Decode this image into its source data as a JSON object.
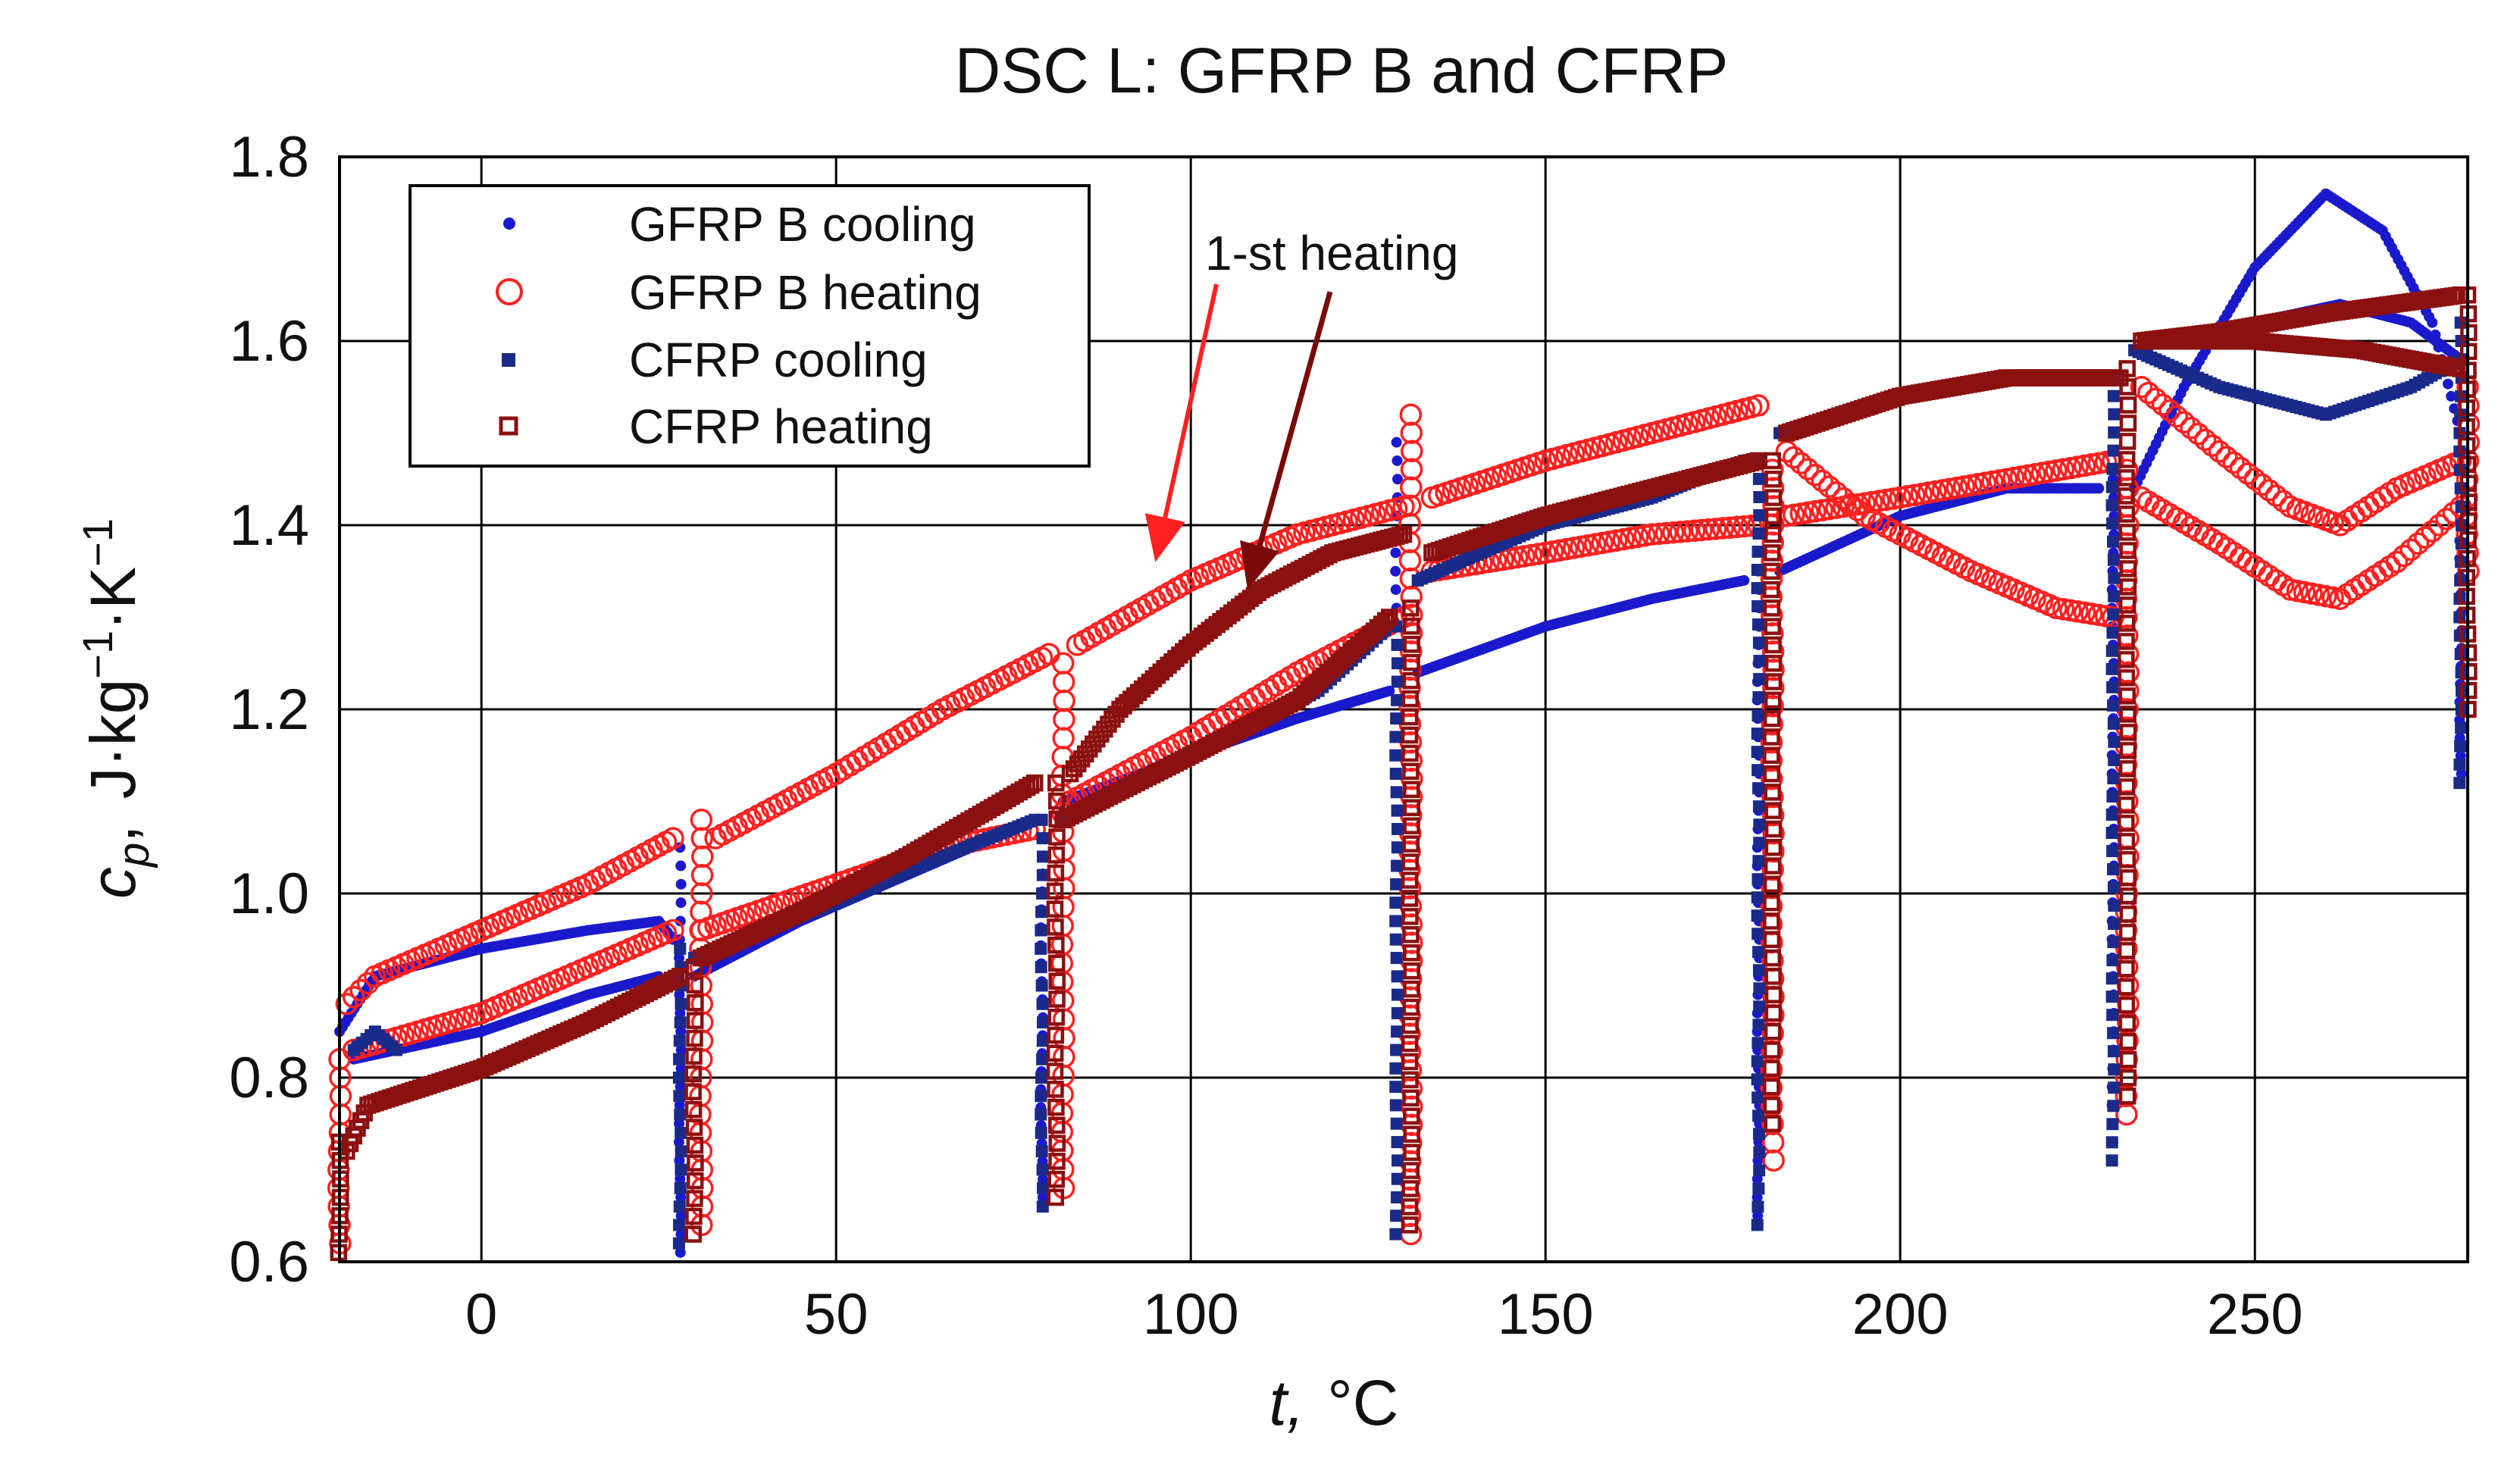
{
  "chart_data": {
    "type": "scatter",
    "title": "DSC L: GFRP B and CFRP",
    "xlabel_var": "t,",
    "xlabel_unit": "°C",
    "ylabel": "c_p, J·kg⁻¹·K⁻¹",
    "ylabel_var": "c",
    "ylabel_sub": "p",
    "ylabel_unit": "J·kg",
    "ylabel_sup1": "−1",
    "ylabel_mid": "·K",
    "ylabel_sup2": "−1",
    "xlim": [
      -20,
      280
    ],
    "ylim": [
      0.6,
      1.8
    ],
    "xticks": [
      0,
      50,
      100,
      150,
      200,
      250
    ],
    "xtick_labels": [
      "0",
      "50",
      "100",
      "150",
      "200",
      "250"
    ],
    "yticks": [
      0.6,
      0.8,
      1.0,
      1.2,
      1.4,
      1.6,
      1.8
    ],
    "ytick_labels": [
      "0.6",
      "0.8",
      "1.0",
      "1.2",
      "1.4",
      "1.6",
      "1.8"
    ],
    "grid": true,
    "legend_position": "top-left",
    "legend": [
      "GFRP B cooling",
      "GFRP B heating",
      "CFRP cooling",
      "CFRP heating"
    ],
    "annotations": [
      {
        "text": "1-st heating",
        "targets": [
          [
            95,
            1.36
          ],
          [
            108,
            1.33
          ]
        ]
      }
    ],
    "colors": {
      "gfrp_cooling": "#1a1acc",
      "gfrp_heating": "#ff2020",
      "cfrp_cooling": "#1a2a8a",
      "cfrp_heating": "#8b1010",
      "arrow_red": "#ff2020",
      "arrow_dark": "#7a0a0a"
    },
    "series": [
      {
        "name": "GFRP B cooling",
        "marker": "dot",
        "segments": [
          [
            [
              -20,
              0.85
            ],
            [
              -15,
              0.91
            ],
            [
              0,
              0.94
            ],
            [
              15,
              0.96
            ],
            [
              25,
              0.97
            ],
            [
              27,
              0.95
            ]
          ],
          [
            [
              -18,
              0.82
            ],
            [
              0,
              0.85
            ],
            [
              15,
              0.89
            ],
            [
              25,
              0.91
            ]
          ],
          [
            [
              30,
              0.91
            ],
            [
              45,
              0.97
            ],
            [
              60,
              1.02
            ],
            [
              75,
              1.07
            ],
            [
              78,
              1.08
            ]
          ],
          [
            [
              82,
              1.1
            ],
            [
              100,
              1.15
            ],
            [
              115,
              1.19
            ],
            [
              128,
              1.22
            ]
          ],
          [
            [
              132,
              1.24
            ],
            [
              150,
              1.29
            ],
            [
              165,
              1.32
            ],
            [
              178,
              1.34
            ]
          ],
          [
            [
              183,
              1.35
            ],
            [
              200,
              1.41
            ],
            [
              215,
              1.44
            ],
            [
              228,
              1.44
            ]
          ],
          [
            [
              233,
              1.44
            ],
            [
              240,
              1.55
            ],
            [
              250,
              1.68
            ],
            [
              260,
              1.76
            ],
            [
              268,
              1.72
            ],
            [
              275,
              1.62
            ],
            [
              279,
              1.5
            ]
          ],
          [
            [
              235,
              1.6
            ],
            [
              250,
              1.62
            ],
            [
              262,
              1.64
            ],
            [
              272,
              1.62
            ],
            [
              279,
              1.58
            ]
          ]
        ],
        "drops": [
          [
            28,
            1.05,
            0.61
          ],
          [
            79,
            1.08,
            0.67
          ],
          [
            129,
            1.49,
            0.63
          ],
          [
            180,
            1.35,
            0.65
          ],
          [
            230,
            1.45,
            0.73
          ],
          [
            279,
            1.5,
            1.13
          ]
        ]
      },
      {
        "name": "GFRP B heating",
        "marker": "circle",
        "segments": [
          [
            [
              -19,
              0.88
            ],
            [
              -15,
              0.91
            ],
            [
              0,
              0.96
            ],
            [
              15,
              1.01
            ],
            [
              27,
              1.06
            ]
          ],
          [
            [
              -18,
              0.83
            ],
            [
              0,
              0.87
            ],
            [
              15,
              0.92
            ],
            [
              27,
              0.96
            ]
          ],
          [
            [
              33,
              1.06
            ],
            [
              50,
              1.13
            ],
            [
              65,
              1.2
            ],
            [
              80,
              1.26
            ]
          ],
          [
            [
              31,
              0.96
            ],
            [
              50,
              1.01
            ],
            [
              65,
              1.05
            ],
            [
              78,
              1.07
            ]
          ],
          [
            [
              84,
              1.27
            ],
            [
              100,
              1.34
            ],
            [
              115,
              1.39
            ],
            [
              130,
              1.42
            ]
          ],
          [
            [
              83,
              1.1
            ],
            [
              100,
              1.17
            ],
            [
              115,
              1.24
            ],
            [
              130,
              1.3
            ]
          ],
          [
            [
              134,
              1.43
            ],
            [
              150,
              1.47
            ],
            [
              165,
              1.5
            ],
            [
              180,
              1.53
            ]
          ],
          [
            [
              134,
              1.35
            ],
            [
              150,
              1.37
            ],
            [
              165,
              1.39
            ],
            [
              180,
              1.4
            ]
          ],
          [
            [
              184,
              1.48
            ],
            [
              195,
              1.41
            ],
            [
              210,
              1.35
            ],
            [
              222,
              1.31
            ],
            [
              230,
              1.3
            ]
          ],
          [
            [
              184,
              1.41
            ],
            [
              200,
              1.43
            ],
            [
              215,
              1.45
            ],
            [
              230,
              1.47
            ]
          ],
          [
            [
              234,
              1.55
            ],
            [
              245,
              1.48
            ],
            [
              255,
              1.42
            ],
            [
              262,
              1.4
            ],
            [
              270,
              1.44
            ],
            [
              279,
              1.47
            ]
          ],
          [
            [
              234,
              1.43
            ],
            [
              245,
              1.38
            ],
            [
              255,
              1.33
            ],
            [
              262,
              1.32
            ],
            [
              270,
              1.36
            ],
            [
              279,
              1.42
            ]
          ]
        ],
        "drops": [
          [
            -20,
            0.82,
            0.62
          ],
          [
            31,
            1.08,
            0.64
          ],
          [
            82,
            1.25,
            0.68
          ],
          [
            131,
            1.52,
            0.63
          ],
          [
            182,
            1.46,
            0.71
          ],
          [
            232,
            1.46,
            0.76
          ],
          [
            280,
            1.55,
            1.35
          ]
        ]
      },
      {
        "name": "CFRP cooling",
        "marker": "square",
        "segments": [
          [
            [
              -18,
              0.83
            ],
            [
              -15,
              0.85
            ],
            [
              -12,
              0.83
            ]
          ],
          [
            [
              30,
              0.93
            ],
            [
              50,
              0.99
            ],
            [
              65,
              1.04
            ],
            [
              78,
              1.08
            ]
          ],
          [
            [
              82,
              1.08
            ],
            [
              100,
              1.15
            ],
            [
              118,
              1.22
            ],
            [
              128,
              1.29
            ]
          ],
          [
            [
              132,
              1.34
            ],
            [
              150,
              1.4
            ],
            [
              165,
              1.43
            ],
            [
              178,
              1.47
            ]
          ],
          [
            [
              183,
              1.5
            ],
            [
              200,
              1.54
            ],
            [
              215,
              1.56
            ],
            [
              229,
              1.56
            ]
          ],
          [
            [
              233,
              1.59
            ],
            [
              245,
              1.55
            ],
            [
              260,
              1.52
            ],
            [
              272,
              1.55
            ],
            [
              279,
              1.58
            ]
          ]
        ],
        "drops": [
          [
            28,
            0.94,
            0.62
          ],
          [
            79,
            1.08,
            0.66
          ],
          [
            129,
            1.29,
            0.63
          ],
          [
            180,
            1.47,
            0.64
          ],
          [
            230,
            1.56,
            0.71
          ],
          [
            279,
            1.62,
            1.12
          ]
        ]
      },
      {
        "name": "CFRP heating",
        "marker": "square-open",
        "segments": [
          [
            [
              -19,
              0.72
            ],
            [
              -16,
              0.77
            ],
            [
              0,
              0.81
            ],
            [
              15,
              0.86
            ],
            [
              28,
              0.91
            ]
          ],
          [
            [
              31,
              0.93
            ],
            [
              45,
              0.98
            ],
            [
              60,
              1.04
            ],
            [
              78,
              1.12
            ]
          ],
          [
            [
              83,
              1.13
            ],
            [
              90,
              1.2
            ],
            [
              100,
              1.27
            ],
            [
              110,
              1.33
            ],
            [
              120,
              1.37
            ],
            [
              130,
              1.39
            ]
          ],
          [
            [
              82,
              1.08
            ],
            [
              100,
              1.15
            ],
            [
              115,
              1.21
            ],
            [
              128,
              1.3
            ]
          ],
          [
            [
              134,
              1.37
            ],
            [
              150,
              1.41
            ],
            [
              165,
              1.44
            ],
            [
              180,
              1.47
            ]
          ],
          [
            [
              184,
              1.5
            ],
            [
              200,
              1.54
            ],
            [
              215,
              1.56
            ],
            [
              231,
              1.56
            ]
          ],
          [
            [
              234,
              1.6
            ],
            [
              245,
              1.61
            ],
            [
              260,
              1.63
            ],
            [
              279,
              1.65
            ]
          ],
          [
            [
              235,
              1.6
            ],
            [
              250,
              1.6
            ],
            [
              265,
              1.59
            ],
            [
              279,
              1.57
            ]
          ]
        ],
        "drops": [
          [
            -20,
            0.73,
            0.61
          ],
          [
            30,
            0.92,
            0.63
          ],
          [
            81,
            1.12,
            0.67
          ],
          [
            131,
            1.31,
            0.64
          ],
          [
            182,
            1.47,
            0.75
          ],
          [
            232,
            1.57,
            0.78
          ],
          [
            280,
            1.65,
            1.2
          ]
        ]
      }
    ]
  }
}
